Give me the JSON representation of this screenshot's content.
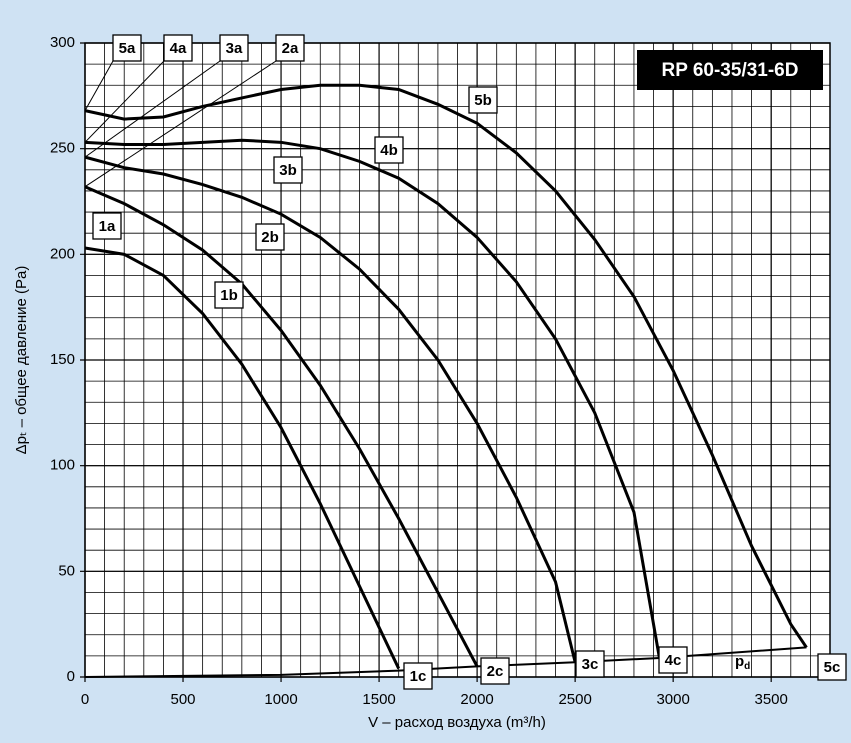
{
  "chart_data": {
    "type": "line",
    "title": "RP 60-35/31-6D",
    "x_label": "V – расход воздуха (m³/h)",
    "y_label": "Δpₜ – общее давление (Pa)",
    "xlim": [
      0,
      3800
    ],
    "xticks": [
      0,
      500,
      1000,
      1500,
      2000,
      2500,
      3000,
      3500
    ],
    "ylim": [
      0,
      300
    ],
    "yticks": [
      0,
      50,
      100,
      150,
      200,
      250,
      300
    ],
    "grid": true,
    "grid_step": {
      "x": 100,
      "y": 10
    },
    "series": [
      {
        "color": "#000000",
        "labels": [
          "1a",
          "1b",
          "1c"
        ],
        "x": [
          0,
          200,
          400,
          600,
          800,
          1000,
          1200,
          1400,
          1600
        ],
        "values": [
          203,
          200,
          190,
          172,
          148,
          118,
          82,
          43,
          4
        ]
      },
      {
        "color": "#000000",
        "labels": [
          "2a",
          "2b",
          "2c"
        ],
        "x": [
          0,
          200,
          400,
          600,
          800,
          1000,
          1200,
          1400,
          1600,
          1800,
          2000
        ],
        "values": [
          232,
          224,
          214,
          202,
          186,
          164,
          138,
          108,
          75,
          40,
          5
        ]
      },
      {
        "color": "#000000",
        "labels": [
          "3a",
          "3b",
          "3c"
        ],
        "x": [
          0,
          200,
          400,
          600,
          800,
          1000,
          1200,
          1400,
          1600,
          1800,
          2000,
          2200,
          2400,
          2500
        ],
        "values": [
          246,
          241,
          238,
          233,
          227,
          219,
          208,
          193,
          174,
          150,
          120,
          85,
          45,
          7
        ]
      },
      {
        "color": "#000000",
        "labels": [
          "4a",
          "4b",
          "4c"
        ],
        "x": [
          0,
          200,
          400,
          600,
          800,
          1000,
          1200,
          1400,
          1600,
          1800,
          2000,
          2200,
          2400,
          2600,
          2800,
          2930
        ],
        "values": [
          253,
          252,
          252,
          253,
          254,
          253,
          250,
          244,
          236,
          224,
          208,
          187,
          160,
          125,
          78,
          9
        ]
      },
      {
        "color": "#000000",
        "labels": [
          "5a",
          "5b",
          "5c"
        ],
        "x": [
          0,
          200,
          400,
          600,
          800,
          1000,
          1200,
          1400,
          1600,
          1800,
          2000,
          2200,
          2400,
          2600,
          2800,
          3000,
          3200,
          3400,
          3600,
          3680
        ],
        "values": [
          268,
          264,
          265,
          270,
          274,
          278,
          280,
          280,
          278,
          271,
          262,
          248,
          230,
          207,
          180,
          145,
          105,
          62,
          25,
          14
        ]
      },
      {
        "color": "#000000",
        "label": {
          "main": "p",
          "sub": "d"
        },
        "x": [
          0,
          1000,
          1600,
          2000,
          2500,
          2930,
          3680
        ],
        "values": [
          0,
          1,
          3,
          5,
          7,
          9,
          14
        ]
      }
    ]
  }
}
